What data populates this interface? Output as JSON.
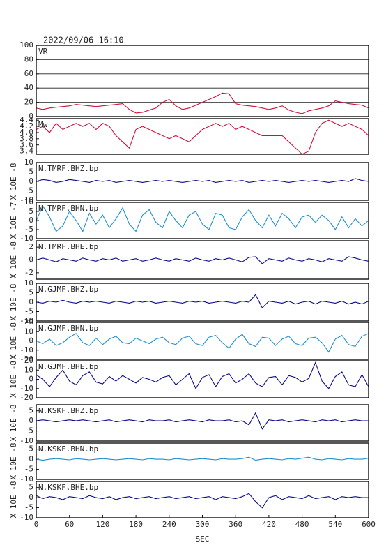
{
  "title": "2022/09/06 16:10",
  "chart_data": [
    {
      "type": "line",
      "title": "VR",
      "color": "#d0103a",
      "grid": true,
      "xlim": [
        0,
        600
      ],
      "ylim": [
        0,
        100
      ],
      "yticks": [
        0,
        20,
        40,
        60,
        80,
        100
      ],
      "x": [
        0,
        12,
        24,
        36,
        48,
        60,
        72,
        84,
        96,
        108,
        120,
        132,
        144,
        156,
        168,
        180,
        192,
        204,
        216,
        228,
        240,
        252,
        264,
        276,
        288,
        300,
        312,
        324,
        336,
        348,
        360,
        372,
        384,
        396,
        408,
        420,
        432,
        444,
        456,
        468,
        480,
        492,
        504,
        516,
        528,
        540,
        552,
        564,
        576,
        588,
        600
      ],
      "values": [
        12,
        10,
        12,
        13,
        14,
        15,
        17,
        16,
        15,
        14,
        15,
        16,
        17,
        18,
        10,
        5,
        6,
        9,
        12,
        20,
        24,
        15,
        10,
        12,
        16,
        20,
        24,
        28,
        33,
        32,
        18,
        16,
        15,
        14,
        12,
        10,
        12,
        15,
        9,
        6,
        4,
        8,
        10,
        12,
        15,
        22,
        20,
        18,
        17,
        16,
        12
      ]
    },
    {
      "type": "line",
      "title": "Mw",
      "color": "#d0103a",
      "grid": false,
      "xlim": [
        0,
        600
      ],
      "ylim": [
        3.3,
        4.45
      ],
      "yticks": [
        3.4,
        3.6,
        3.8,
        {
          "value": 4,
          "label": "4.0"
        },
        4.2,
        4.4
      ],
      "x": [
        0,
        12,
        24,
        36,
        48,
        60,
        72,
        84,
        96,
        108,
        120,
        132,
        144,
        156,
        168,
        180,
        192,
        204,
        216,
        228,
        240,
        252,
        264,
        276,
        288,
        300,
        312,
        324,
        336,
        348,
        360,
        372,
        384,
        396,
        408,
        420,
        432,
        444,
        456,
        468,
        480,
        492,
        504,
        516,
        528,
        540,
        552,
        564,
        576,
        588,
        600
      ],
      "values": [
        4.1,
        4.2,
        4.0,
        4.3,
        4.1,
        4.2,
        4.3,
        4.2,
        4.3,
        4.1,
        4.3,
        4.2,
        3.9,
        3.7,
        3.5,
        4.1,
        4.2,
        4.1,
        4.0,
        3.9,
        3.8,
        3.9,
        3.8,
        3.7,
        3.9,
        4.1,
        4.2,
        4.3,
        4.2,
        4.3,
        4.1,
        4.2,
        4.1,
        4.0,
        3.9,
        3.9,
        3.9,
        3.9,
        3.7,
        3.5,
        3.3,
        3.4,
        4.0,
        4.3,
        4.4,
        4.3,
        4.2,
        4.3,
        4.2,
        4.1,
        3.9
      ]
    },
    {
      "type": "line",
      "title": "N.TMRF.BHZ.bp",
      "ylabel": "X 10E -8",
      "color": "#0a0a8a",
      "grid": false,
      "xlim": [
        0,
        600
      ],
      "ylim": [
        -10,
        10
      ],
      "yticks": [
        -10,
        -5,
        0,
        5,
        10
      ],
      "x": [
        0,
        12,
        24,
        36,
        48,
        60,
        72,
        84,
        96,
        108,
        120,
        132,
        144,
        156,
        168,
        180,
        192,
        204,
        216,
        228,
        240,
        252,
        264,
        276,
        288,
        300,
        312,
        324,
        336,
        348,
        360,
        372,
        384,
        396,
        408,
        420,
        432,
        444,
        456,
        468,
        480,
        492,
        504,
        516,
        528,
        540,
        552,
        564,
        576,
        588,
        600
      ],
      "values": [
        0,
        1,
        0.5,
        -0.5,
        0,
        1,
        0.5,
        0,
        -0.5,
        0.5,
        0,
        0.5,
        -0.5,
        0,
        0.5,
        0,
        -0.5,
        0,
        0.5,
        0,
        0.5,
        0,
        -0.5,
        0,
        0.5,
        0,
        0.5,
        -0.5,
        0,
        0.5,
        0,
        0.5,
        -0.5,
        0,
        0.5,
        0,
        0.5,
        0,
        -0.5,
        0,
        0.5,
        0,
        0.5,
        0,
        -0.5,
        0,
        0.5,
        0,
        1.5,
        0.5,
        0
      ]
    },
    {
      "type": "line",
      "title": "N.TMRF.BHN.bp",
      "ylabel": "X 10E -7",
      "color": "#1e90d0",
      "grid": false,
      "xlim": [
        0,
        600
      ],
      "ylim": [
        -10,
        10
      ],
      "yticks": [
        -10,
        -5,
        0,
        5,
        10
      ],
      "x": [
        0,
        12,
        24,
        36,
        48,
        60,
        72,
        84,
        96,
        108,
        120,
        132,
        144,
        156,
        168,
        180,
        192,
        204,
        216,
        228,
        240,
        252,
        264,
        276,
        288,
        300,
        312,
        324,
        336,
        348,
        360,
        372,
        384,
        396,
        408,
        420,
        432,
        444,
        456,
        468,
        480,
        492,
        504,
        516,
        528,
        540,
        552,
        564,
        576,
        588,
        600
      ],
      "values": [
        0,
        8,
        2,
        -6,
        -3,
        5,
        0,
        -6,
        4,
        -2,
        3,
        -4,
        1,
        7,
        -2,
        -6,
        3,
        6,
        -1,
        -4,
        5,
        0,
        -4,
        3,
        5,
        -2,
        -5,
        4,
        3,
        -4,
        -5,
        2,
        6,
        0,
        -4,
        3,
        -3,
        4,
        1,
        -4,
        2,
        3,
        -1,
        3,
        0,
        -5,
        2,
        -4,
        1,
        -3,
        0
      ]
    },
    {
      "type": "line",
      "title": "N.TMRF.BHE.bp",
      "ylabel": "X 10E -8",
      "color": "#0a0a8a",
      "grid": false,
      "xlim": [
        0,
        600
      ],
      "ylim": [
        -3,
        3
      ],
      "yticks": [
        -2,
        0,
        2
      ],
      "x": [
        0,
        12,
        24,
        36,
        48,
        60,
        72,
        84,
        96,
        108,
        120,
        132,
        144,
        156,
        168,
        180,
        192,
        204,
        216,
        228,
        240,
        252,
        264,
        276,
        288,
        300,
        312,
        324,
        336,
        348,
        360,
        372,
        384,
        396,
        408,
        420,
        432,
        444,
        456,
        468,
        480,
        492,
        504,
        516,
        528,
        540,
        552,
        564,
        576,
        588,
        600
      ],
      "values": [
        0,
        0.3,
        0,
        -0.3,
        0.2,
        0,
        -0.2,
        0.3,
        0,
        -0.2,
        0.2,
        0,
        0.3,
        -0.2,
        0,
        0.2,
        -0.2,
        0,
        0.3,
        0,
        -0.2,
        0.2,
        0,
        -0.2,
        0.3,
        0,
        -0.2,
        0.2,
        0,
        0.3,
        0,
        -0.3,
        0.4,
        0.5,
        -0.6,
        0.2,
        0,
        -0.2,
        0.3,
        0,
        -0.2,
        0.2,
        0,
        -0.3,
        0.2,
        0,
        -0.2,
        0.5,
        0.3,
        0,
        -0.2
      ]
    },
    {
      "type": "line",
      "title": "N.GJMF.BHZ.bp",
      "ylabel": "X 10E -8",
      "color": "#0a0a8a",
      "grid": false,
      "xlim": [
        0,
        600
      ],
      "ylim": [
        -10,
        10
      ],
      "yticks": [
        -10,
        -5,
        0,
        5,
        10
      ],
      "x": [
        0,
        12,
        24,
        36,
        48,
        60,
        72,
        84,
        96,
        108,
        120,
        132,
        144,
        156,
        168,
        180,
        192,
        204,
        216,
        228,
        240,
        252,
        264,
        276,
        288,
        300,
        312,
        324,
        336,
        348,
        360,
        372,
        384,
        396,
        408,
        420,
        432,
        444,
        456,
        468,
        480,
        492,
        504,
        516,
        528,
        540,
        552,
        564,
        576,
        588,
        600
      ],
      "values": [
        0,
        -0.5,
        0.5,
        0,
        1,
        0,
        -0.5,
        0.5,
        0,
        0.5,
        0,
        -0.5,
        0.5,
        0,
        -0.5,
        0.5,
        0,
        0.5,
        -0.5,
        0,
        0.5,
        0,
        -0.5,
        0.5,
        0,
        0.5,
        -0.5,
        0,
        0.5,
        0,
        -0.5,
        0.5,
        0,
        4,
        -3,
        0.5,
        0,
        -0.5,
        0.5,
        -1,
        0,
        0.5,
        -1,
        0.5,
        0,
        -0.5,
        0.5,
        -1,
        0,
        -1,
        0.5
      ]
    },
    {
      "type": "line",
      "title": "N.GJMF.BHN.bp",
      "ylabel": "X 10E -8",
      "color": "#1e90d0",
      "grid": false,
      "xlim": [
        0,
        600
      ],
      "ylim": [
        -20,
        20
      ],
      "yticks": [
        -20,
        -10,
        0,
        10,
        20
      ],
      "x": [
        0,
        12,
        24,
        36,
        48,
        60,
        72,
        84,
        96,
        108,
        120,
        132,
        144,
        156,
        168,
        180,
        192,
        204,
        216,
        228,
        240,
        252,
        264,
        276,
        288,
        300,
        312,
        324,
        336,
        348,
        360,
        372,
        384,
        396,
        408,
        420,
        432,
        444,
        456,
        468,
        480,
        492,
        504,
        516,
        528,
        540,
        552,
        564,
        576,
        588,
        600
      ],
      "values": [
        0,
        -3,
        2,
        -5,
        -2,
        4,
        8,
        -2,
        -5,
        3,
        -4,
        2,
        5,
        -2,
        -3,
        3,
        0,
        -3,
        2,
        4,
        -2,
        -4,
        3,
        5,
        -3,
        -5,
        4,
        6,
        -2,
        -8,
        2,
        7,
        -3,
        -6,
        4,
        3,
        -5,
        2,
        5,
        -3,
        -5,
        3,
        4,
        -2,
        -12,
        2,
        6,
        -4,
        -6,
        5,
        8
      ]
    },
    {
      "type": "line",
      "title": "N.GJMF.BHE.bp",
      "ylabel": "X 10E -8",
      "color": "#0a0a8a",
      "grid": false,
      "xlim": [
        0,
        600
      ],
      "ylim": [
        -20,
        20
      ],
      "yticks": [
        -20,
        -10,
        0,
        10,
        20
      ],
      "x": [
        0,
        12,
        24,
        36,
        48,
        60,
        72,
        84,
        96,
        108,
        120,
        132,
        144,
        156,
        168,
        180,
        192,
        204,
        216,
        228,
        240,
        252,
        264,
        276,
        288,
        300,
        312,
        324,
        336,
        348,
        360,
        372,
        384,
        396,
        408,
        420,
        432,
        444,
        456,
        468,
        480,
        492,
        504,
        516,
        528,
        540,
        552,
        564,
        576,
        588,
        600
      ],
      "values": [
        5,
        0,
        -8,
        2,
        10,
        -2,
        -6,
        4,
        8,
        -3,
        -5,
        3,
        -2,
        4,
        0,
        -4,
        2,
        0,
        -3,
        2,
        4,
        -6,
        0,
        6,
        -10,
        2,
        5,
        -8,
        3,
        6,
        -4,
        0,
        6,
        -4,
        -8,
        2,
        3,
        -6,
        4,
        2,
        -3,
        1,
        18,
        -2,
        -10,
        3,
        8,
        -6,
        -8,
        5,
        -8
      ]
    },
    {
      "type": "line",
      "title": "N.KSKF.BHZ.bp",
      "ylabel": "X 10E -8",
      "color": "#0a0a8a",
      "grid": false,
      "xlim": [
        0,
        600
      ],
      "ylim": [
        -10,
        8
      ],
      "yticks": [
        -10,
        -5,
        0,
        5
      ],
      "x": [
        0,
        12,
        24,
        36,
        48,
        60,
        72,
        84,
        96,
        108,
        120,
        132,
        144,
        156,
        168,
        180,
        192,
        204,
        216,
        228,
        240,
        252,
        264,
        276,
        288,
        300,
        312,
        324,
        336,
        348,
        360,
        372,
        384,
        396,
        408,
        420,
        432,
        444,
        456,
        468,
        480,
        492,
        504,
        516,
        528,
        540,
        552,
        564,
        576,
        588,
        600
      ],
      "values": [
        0,
        0.5,
        0,
        -0.5,
        0,
        0.5,
        0,
        0.5,
        0,
        -0.5,
        0,
        0.5,
        -0.5,
        0,
        0.5,
        0,
        -0.5,
        0.5,
        0,
        0,
        0.5,
        -0.5,
        0,
        0.5,
        0,
        -0.5,
        0.5,
        0,
        0,
        0.5,
        -0.5,
        0,
        -2,
        4,
        -4,
        0.5,
        0,
        0.5,
        -0.5,
        0,
        0.5,
        0,
        -0.5,
        0.5,
        0,
        0.5,
        -0.5,
        0,
        0.5,
        0,
        0
      ]
    },
    {
      "type": "line",
      "title": "N.KSKF.BHN.bp",
      "ylabel": "X 10E -8",
      "color": "#1e90d0",
      "grid": false,
      "xlim": [
        0,
        600
      ],
      "ylim": [
        -10,
        8
      ],
      "yticks": [
        -10,
        -5,
        0,
        5
      ],
      "x": [
        0,
        12,
        24,
        36,
        48,
        60,
        72,
        84,
        96,
        108,
        120,
        132,
        144,
        156,
        168,
        180,
        192,
        204,
        216,
        228,
        240,
        252,
        264,
        276,
        288,
        300,
        312,
        324,
        336,
        348,
        360,
        372,
        384,
        396,
        408,
        420,
        432,
        444,
        456,
        468,
        480,
        492,
        504,
        516,
        528,
        540,
        552,
        564,
        576,
        588,
        600
      ],
      "values": [
        0,
        -0.5,
        0,
        0.3,
        0,
        -0.3,
        0.3,
        0,
        -0.3,
        0,
        0.3,
        0,
        -0.3,
        0,
        0.3,
        0,
        -0.3,
        0.3,
        0,
        0,
        -0.3,
        0.3,
        0,
        -0.3,
        0,
        0.3,
        0,
        -0.3,
        0.3,
        0,
        0,
        0.3,
        1,
        -0.5,
        0,
        0.3,
        0,
        -0.3,
        0.3,
        0,
        0.5,
        1,
        0,
        -0.3,
        0.3,
        0,
        -0.3,
        0.3,
        0,
        0,
        0.5
      ]
    },
    {
      "type": "line",
      "title": "N.KSKF.BHE.bp",
      "ylabel": "X 10E -8",
      "color": "#0a0a8a",
      "grid": false,
      "xlim": [
        0,
        600
      ],
      "ylim": [
        -10,
        8
      ],
      "yticks": [
        -10,
        -5,
        0,
        5
      ],
      "xticks": [
        0,
        60,
        120,
        180,
        240,
        300,
        360,
        420,
        480,
        540,
        600
      ],
      "xlabel": "SEC",
      "x": [
        0,
        12,
        24,
        36,
        48,
        60,
        72,
        84,
        96,
        108,
        120,
        132,
        144,
        156,
        168,
        180,
        192,
        204,
        216,
        228,
        240,
        252,
        264,
        276,
        288,
        300,
        312,
        324,
        336,
        348,
        360,
        372,
        384,
        396,
        408,
        420,
        432,
        444,
        456,
        468,
        480,
        492,
        504,
        516,
        528,
        540,
        552,
        564,
        576,
        588,
        600
      ],
      "values": [
        1,
        -0.5,
        0.5,
        0,
        -1,
        0.5,
        0,
        -0.5,
        1,
        0,
        -0.5,
        0.5,
        -1,
        0,
        0.5,
        -0.5,
        0,
        0.5,
        -0.5,
        0,
        0.5,
        -0.5,
        0,
        0.5,
        -0.5,
        0,
        0.5,
        -1,
        0.5,
        0,
        -0.5,
        0.5,
        2,
        -2,
        -5,
        0,
        1,
        -1,
        0.5,
        0,
        -0.5,
        1,
        -0.5,
        0,
        0.5,
        -1,
        0.5,
        0,
        0.5,
        0,
        0
      ]
    }
  ]
}
